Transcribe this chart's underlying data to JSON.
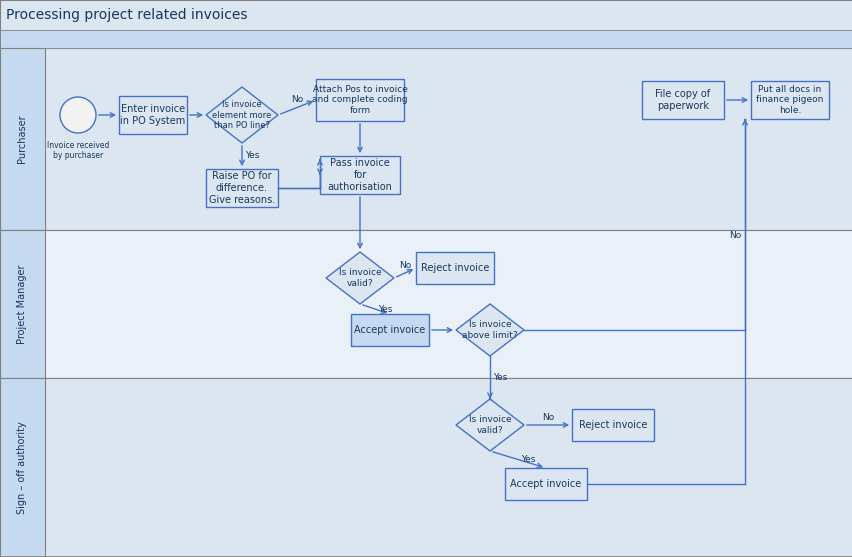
{
  "title": "Processing project related invoices",
  "title_bg": "#dce6f1",
  "title_fontsize": 10,
  "header_bg": "#c5d9f1",
  "lane_bg_odd": "#dce6f1",
  "lane_bg_even": "#e9f0f8",
  "label_bg": "#c5d9f1",
  "box_fill_light": "#dce6f1",
  "box_fill_dark": "#c5d9f1",
  "box_stroke": "#4472c4",
  "diamond_fill": "#dce6f1",
  "diamond_stroke": "#4472c4",
  "arrow_color": "#4472c4",
  "text_color": "#17375e",
  "outer_border": "#808080",
  "lane_border": "#808080",
  "lanes": [
    "Purchaser",
    "Project Manager",
    "Sign – off authority"
  ],
  "figw": 8.53,
  "figh": 5.57,
  "dpi": 100
}
